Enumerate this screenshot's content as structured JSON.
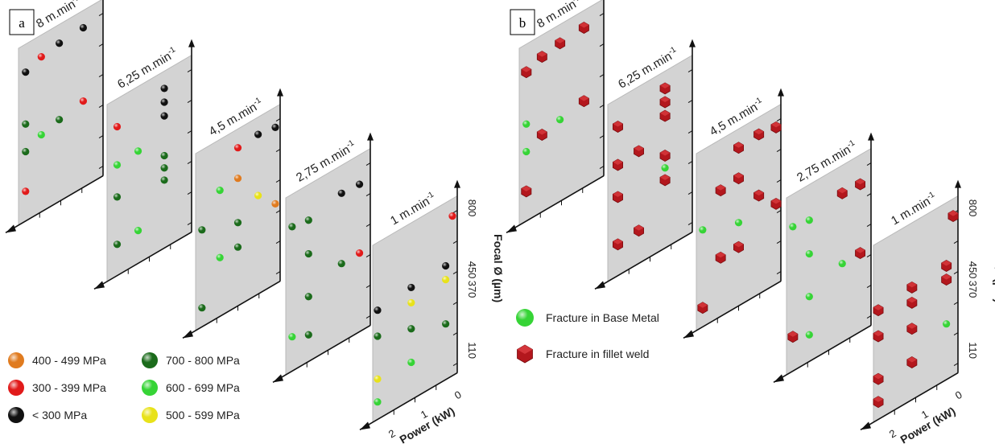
{
  "chart_data": [
    {
      "type": "scatter",
      "panel_label": "a",
      "axes": {
        "focal_label": "Focal Ø (µm)",
        "focal_ticks": [
          "800",
          "450",
          "370",
          "110"
        ],
        "power_label": "Power (kW)",
        "power_ticks": [
          "2",
          "1",
          "0"
        ]
      },
      "legend": [
        {
          "label": "400 - 499 MPa",
          "color": "#e07b1f"
        },
        {
          "label": "300 - 399 MPa",
          "color": "#e11a1a"
        },
        {
          "label": "< 300 MPa",
          "color": "#111111"
        },
        {
          "label": "700 - 800 MPa",
          "color": "#1b6b1b"
        },
        {
          "label": "600 - 699 MPa",
          "color": "#36d436"
        },
        {
          "label": "500 - 599 MPa",
          "color": "#e8e21a"
        }
      ],
      "planes": [
        {
          "speed": "8 m.min-1",
          "points": [
            {
              "u": 0.03,
              "v": 0.93,
              "c": "#111111"
            },
            {
              "u": 0.24,
              "v": 0.97,
              "c": "#e11a1a"
            },
            {
              "u": 0.48,
              "v": 0.99,
              "c": "#111111"
            },
            {
              "u": 0.8,
              "v": 1.0,
              "c": "#111111"
            },
            {
              "u": 0.03,
              "v": 0.59,
              "c": "#1b6b1b"
            },
            {
              "u": 0.03,
              "v": 0.41,
              "c": "#1b6b1b"
            },
            {
              "u": 0.24,
              "v": 0.46,
              "c": "#36d436"
            },
            {
              "u": 0.48,
              "v": 0.49,
              "c": "#1b6b1b"
            },
            {
              "u": 0.8,
              "v": 0.52,
              "c": "#e11a1a"
            },
            {
              "u": 0.03,
              "v": 0.15,
              "c": "#e11a1a"
            }
          ]
        },
        {
          "speed": "6,25 m.min-1",
          "points": [
            {
              "u": 0.07,
              "v": 0.93,
              "c": "#e11a1a"
            },
            {
              "u": 0.7,
              "v": 1.0,
              "c": "#111111"
            },
            {
              "u": 0.7,
              "v": 0.91,
              "c": "#111111"
            },
            {
              "u": 0.7,
              "v": 0.82,
              "c": "#111111"
            },
            {
              "u": 0.07,
              "v": 0.68,
              "c": "#36d436"
            },
            {
              "u": 0.35,
              "v": 0.69,
              "c": "#36d436"
            },
            {
              "u": 0.07,
              "v": 0.47,
              "c": "#1b6b1b"
            },
            {
              "u": 0.7,
              "v": 0.56,
              "c": "#1b6b1b"
            },
            {
              "u": 0.7,
              "v": 0.48,
              "c": "#1b6b1b"
            },
            {
              "u": 0.7,
              "v": 0.4,
              "c": "#1b6b1b"
            },
            {
              "u": 0.07,
              "v": 0.16,
              "c": "#1b6b1b"
            },
            {
              "u": 0.35,
              "v": 0.17,
              "c": "#36d436"
            }
          ]
        },
        {
          "speed": "4,5 m.min-1",
          "points": [
            {
              "u": 0.5,
              "v": 0.99,
              "c": "#e11a1a"
            },
            {
              "u": 0.77,
              "v": 1.0,
              "c": "#111111"
            },
            {
              "u": 1.0,
              "v": 0.98,
              "c": "#111111"
            },
            {
              "u": 0.26,
              "v": 0.78,
              "c": "#36d436"
            },
            {
              "u": 0.5,
              "v": 0.79,
              "c": "#e07b1f"
            },
            {
              "u": 0.02,
              "v": 0.59,
              "c": "#1b6b1b"
            },
            {
              "u": 0.77,
              "v": 0.6,
              "c": "#e8e21a"
            },
            {
              "u": 0.5,
              "v": 0.5,
              "c": "#1b6b1b"
            },
            {
              "u": 1.0,
              "v": 0.48,
              "c": "#e07b1f"
            },
            {
              "u": 0.26,
              "v": 0.34,
              "c": "#36d436"
            },
            {
              "u": 0.5,
              "v": 0.34,
              "c": "#1b6b1b"
            },
            {
              "u": 0.02,
              "v": 0.08,
              "c": "#1b6b1b"
            }
          ]
        },
        {
          "speed": "2,75 m.min-1",
          "points": [
            {
              "u": 0.02,
              "v": 0.9,
              "c": "#1b6b1b"
            },
            {
              "u": 0.24,
              "v": 0.88,
              "c": "#1b6b1b"
            },
            {
              "u": 0.68,
              "v": 0.93,
              "c": "#111111"
            },
            {
              "u": 0.92,
              "v": 0.92,
              "c": "#111111"
            },
            {
              "u": 0.24,
              "v": 0.66,
              "c": "#1b6b1b"
            },
            {
              "u": 0.24,
              "v": 0.38,
              "c": "#1b6b1b"
            },
            {
              "u": 0.68,
              "v": 0.47,
              "c": "#1b6b1b"
            },
            {
              "u": 0.92,
              "v": 0.47,
              "c": "#e11a1a"
            },
            {
              "u": 0.02,
              "v": 0.18,
              "c": "#36d436"
            },
            {
              "u": 0.24,
              "v": 0.13,
              "c": "#1b6b1b"
            }
          ]
        },
        {
          "speed": "1 m.min-1",
          "points": [
            {
              "u": 1.0,
              "v": 1.0,
              "c": "#e11a1a"
            },
            {
              "u": 0.0,
              "v": 0.67,
              "c": "#111111"
            },
            {
              "u": 0.45,
              "v": 0.69,
              "c": "#111111"
            },
            {
              "u": 0.91,
              "v": 0.7,
              "c": "#111111"
            },
            {
              "u": 0.45,
              "v": 0.59,
              "c": "#e8e21a"
            },
            {
              "u": 0.91,
              "v": 0.61,
              "c": "#e8e21a"
            },
            {
              "u": 0.0,
              "v": 0.5,
              "c": "#1b6b1b"
            },
            {
              "u": 0.45,
              "v": 0.42,
              "c": "#1b6b1b"
            },
            {
              "u": 0.91,
              "v": 0.32,
              "c": "#1b6b1b"
            },
            {
              "u": 0.0,
              "v": 0.22,
              "c": "#e8e21a"
            },
            {
              "u": 0.45,
              "v": 0.2,
              "c": "#36d436"
            },
            {
              "u": 0.0,
              "v": 0.07,
              "c": "#36d436"
            }
          ]
        }
      ]
    },
    {
      "type": "scatter",
      "panel_label": "b",
      "axes": {
        "focal_label": "Focal Ø (µm)",
        "focal_ticks": [
          "800",
          "450",
          "370",
          "110"
        ],
        "power_label": "Power (kW)",
        "power_ticks": [
          "2",
          "1",
          "0"
        ]
      },
      "legend": [
        {
          "label": "Fracture in Base Metal",
          "color": "#36d436",
          "marker": "sphere"
        },
        {
          "label": "Fracture in fillet weld",
          "color": "#b3171d",
          "marker": "hexagon"
        }
      ],
      "planes": [
        {
          "speed": "8 m.min-1",
          "points": [
            {
              "u": 0.03,
              "v": 0.93,
              "m": "weld"
            },
            {
              "u": 0.24,
              "v": 0.97,
              "m": "weld"
            },
            {
              "u": 0.48,
              "v": 0.99,
              "m": "weld"
            },
            {
              "u": 0.8,
              "v": 1.0,
              "m": "weld"
            },
            {
              "u": 0.03,
              "v": 0.59,
              "m": "base"
            },
            {
              "u": 0.03,
              "v": 0.41,
              "m": "base"
            },
            {
              "u": 0.24,
              "v": 0.46,
              "m": "weld"
            },
            {
              "u": 0.48,
              "v": 0.49,
              "m": "base"
            },
            {
              "u": 0.8,
              "v": 0.52,
              "m": "weld"
            },
            {
              "u": 0.03,
              "v": 0.15,
              "m": "weld"
            }
          ]
        },
        {
          "speed": "6,25 m.min-1",
          "points": [
            {
              "u": 0.07,
              "v": 0.93,
              "m": "weld"
            },
            {
              "u": 0.7,
              "v": 1.0,
              "m": "weld"
            },
            {
              "u": 0.7,
              "v": 0.91,
              "m": "weld"
            },
            {
              "u": 0.7,
              "v": 0.82,
              "m": "weld"
            },
            {
              "u": 0.07,
              "v": 0.68,
              "m": "weld"
            },
            {
              "u": 0.35,
              "v": 0.69,
              "m": "weld"
            },
            {
              "u": 0.07,
              "v": 0.47,
              "m": "weld"
            },
            {
              "u": 0.7,
              "v": 0.56,
              "m": "weld"
            },
            {
              "u": 0.7,
              "v": 0.48,
              "m": "base"
            },
            {
              "u": 0.7,
              "v": 0.4,
              "m": "weld"
            },
            {
              "u": 0.07,
              "v": 0.16,
              "m": "weld"
            },
            {
              "u": 0.35,
              "v": 0.17,
              "m": "weld"
            }
          ]
        },
        {
          "speed": "4,5 m.min-1",
          "points": [
            {
              "u": 0.5,
              "v": 0.99,
              "m": "weld"
            },
            {
              "u": 0.77,
              "v": 1.0,
              "m": "weld"
            },
            {
              "u": 1.0,
              "v": 0.98,
              "m": "weld"
            },
            {
              "u": 0.26,
              "v": 0.78,
              "m": "weld"
            },
            {
              "u": 0.5,
              "v": 0.79,
              "m": "weld"
            },
            {
              "u": 0.02,
              "v": 0.59,
              "m": "base"
            },
            {
              "u": 0.77,
              "v": 0.6,
              "m": "weld"
            },
            {
              "u": 0.5,
              "v": 0.5,
              "m": "base"
            },
            {
              "u": 1.0,
              "v": 0.48,
              "m": "weld"
            },
            {
              "u": 0.26,
              "v": 0.34,
              "m": "weld"
            },
            {
              "u": 0.5,
              "v": 0.34,
              "m": "weld"
            },
            {
              "u": 0.02,
              "v": 0.08,
              "m": "weld"
            }
          ]
        },
        {
          "speed": "2,75 m.min-1",
          "points": [
            {
              "u": 0.02,
              "v": 0.9,
              "m": "base"
            },
            {
              "u": 0.24,
              "v": 0.88,
              "m": "base"
            },
            {
              "u": 0.68,
              "v": 0.93,
              "m": "weld"
            },
            {
              "u": 0.92,
              "v": 0.92,
              "m": "weld"
            },
            {
              "u": 0.24,
              "v": 0.66,
              "m": "base"
            },
            {
              "u": 0.24,
              "v": 0.38,
              "m": "base"
            },
            {
              "u": 0.68,
              "v": 0.47,
              "m": "base"
            },
            {
              "u": 0.92,
              "v": 0.47,
              "m": "weld"
            },
            {
              "u": 0.02,
              "v": 0.18,
              "m": "weld"
            },
            {
              "u": 0.24,
              "v": 0.13,
              "m": "base"
            }
          ]
        },
        {
          "speed": "1 m.min-1",
          "points": [
            {
              "u": 1.0,
              "v": 1.0,
              "m": "weld"
            },
            {
              "u": 0.0,
              "v": 0.67,
              "m": "weld"
            },
            {
              "u": 0.45,
              "v": 0.69,
              "m": "weld"
            },
            {
              "u": 0.91,
              "v": 0.7,
              "m": "weld"
            },
            {
              "u": 0.45,
              "v": 0.59,
              "m": "weld"
            },
            {
              "u": 0.91,
              "v": 0.61,
              "m": "weld"
            },
            {
              "u": 0.0,
              "v": 0.5,
              "m": "weld"
            },
            {
              "u": 0.45,
              "v": 0.42,
              "m": "weld"
            },
            {
              "u": 0.91,
              "v": 0.32,
              "m": "base"
            },
            {
              "u": 0.0,
              "v": 0.22,
              "m": "weld"
            },
            {
              "u": 0.45,
              "v": 0.2,
              "m": "weld"
            },
            {
              "u": 0.0,
              "v": 0.07,
              "m": "weld"
            }
          ]
        }
      ]
    }
  ]
}
